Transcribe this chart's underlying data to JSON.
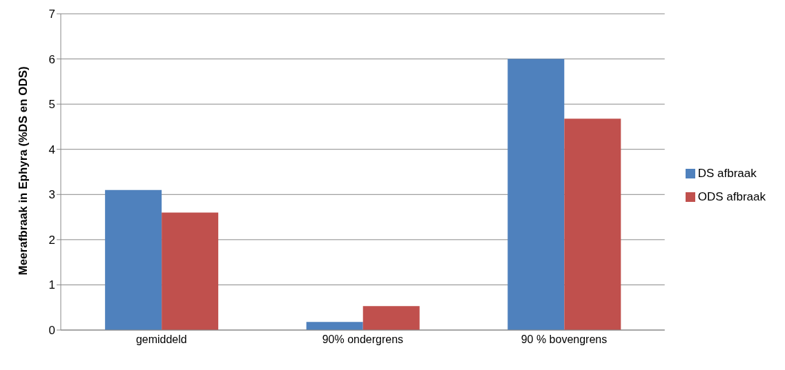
{
  "chart_data": {
    "type": "bar",
    "ylabel": "Meerafbraak in Ephyra (%DS en ODS)",
    "categories": [
      "gemiddeld",
      "90% ondergrens",
      "90 % bovengrens"
    ],
    "series": [
      {
        "name": "DS afbraak",
        "color": "#4f81bd",
        "values": [
          3.1,
          0.18,
          6.0
        ]
      },
      {
        "name": "ODS afbraak",
        "color": "#c0504d",
        "values": [
          2.6,
          0.53,
          4.68
        ]
      }
    ],
    "ylim": [
      0,
      7
    ],
    "yticks": [
      0,
      1,
      2,
      3,
      4,
      5,
      6,
      7
    ],
    "grid": "y",
    "legend": "right"
  }
}
